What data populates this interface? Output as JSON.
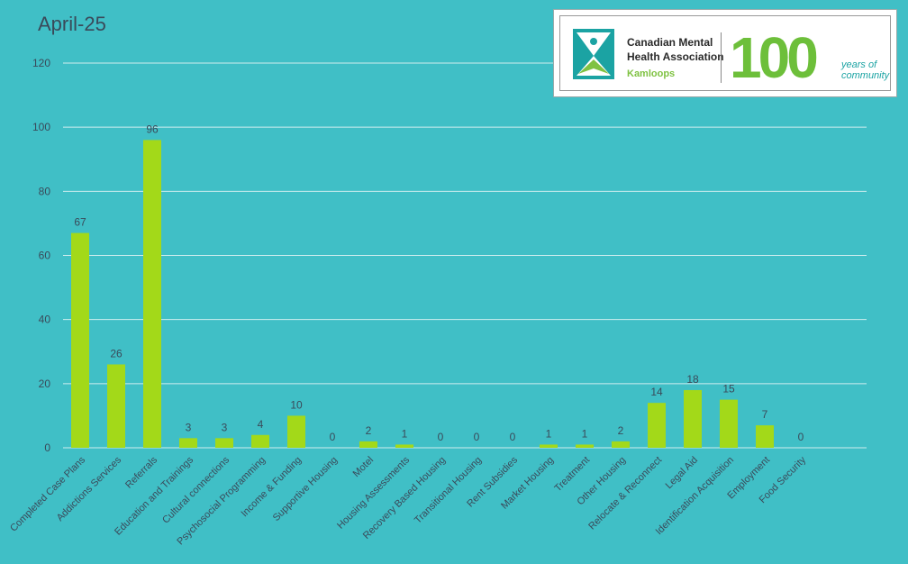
{
  "chart_data": {
    "type": "bar",
    "title": "April-25",
    "categories": [
      "Completed Case Plans",
      "Addictions Services",
      "Referrals",
      "Education and Trainings",
      "Cultural connections",
      "Psychosocial Programming",
      "Income & Funding",
      "Supportive Housing",
      "Motel",
      "Housing Assessments",
      "Recovery Based Housing",
      "Transitional Housing",
      "Rent Subsidies",
      "Market Housing",
      "Treatment",
      "Other Housing",
      "Relocate & Reconnect",
      "Legal Aid",
      "Identification Acquisition",
      "Employment",
      "Food Security"
    ],
    "values": [
      67,
      26,
      96,
      3,
      3,
      4,
      10,
      0,
      2,
      1,
      0,
      0,
      0,
      1,
      1,
      2,
      14,
      18,
      15,
      7,
      0
    ],
    "ylim": [
      0,
      120
    ],
    "yticks": [
      0,
      20,
      40,
      60,
      80,
      100,
      120
    ],
    "grid": true,
    "data_labels": true
  },
  "logo": {
    "org_line1": "Canadian Mental",
    "org_line2": "Health Association",
    "org_branch": "Kamloops",
    "hundred": "100",
    "years_line1": "years of",
    "years_line2": "community"
  },
  "colors": {
    "background": "#40bfc6",
    "bar": "#a3d919",
    "grid": "#e8f6f7",
    "text": "#3a4a5a"
  }
}
